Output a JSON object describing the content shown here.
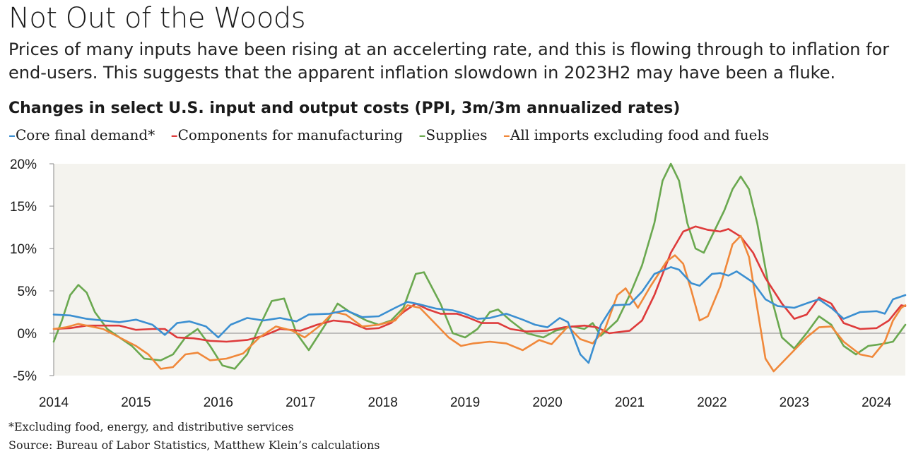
{
  "title": "Not Out of the Woods",
  "subtitle": "Prices of many inputs have been rising at an accelerting rate, and this is flowing through to inflation for end-users. This suggests that the apparent inflation slowdown in 2023H2 may have been a fluke.",
  "footnote": "*Excluding food, energy, and distributive services",
  "source": "Source: Bureau of Labor Statistics, Matthew Klein’s calculations",
  "chart_data": {
    "type": "line",
    "title": "Changes in select U.S. input and output costs (PPI, 3m/3m annualized rates)",
    "legend_position": "top",
    "grid": false,
    "background": "#f4f3ee",
    "xlim": [
      2014.0,
      2024.35
    ],
    "ylim": [
      -5,
      20
    ],
    "x_ticks": [
      2014,
      2015,
      2016,
      2017,
      2018,
      2019,
      2020,
      2021,
      2022,
      2023,
      2024
    ],
    "x_tick_labels": [
      "2014",
      "2015",
      "2016",
      "2017",
      "2018",
      "2019",
      "2020",
      "2021",
      "2022",
      "2023",
      "2024"
    ],
    "y_ticks": [
      -5,
      0,
      5,
      10,
      15,
      20
    ],
    "y_tick_labels": [
      "-5%",
      "0%",
      "5%",
      "10%",
      "15%",
      "20%"
    ],
    "series": [
      {
        "name": "Core final demand*",
        "color": "#3b8fd1",
        "points": [
          [
            2014.0,
            2.2
          ],
          [
            2014.2,
            2.1
          ],
          [
            2014.4,
            1.7
          ],
          [
            2014.6,
            1.5
          ],
          [
            2014.8,
            1.3
          ],
          [
            2015.0,
            1.6
          ],
          [
            2015.2,
            1.0
          ],
          [
            2015.35,
            -0.2
          ],
          [
            2015.5,
            1.2
          ],
          [
            2015.65,
            1.4
          ],
          [
            2015.85,
            0.8
          ],
          [
            2016.0,
            -0.5
          ],
          [
            2016.15,
            1.0
          ],
          [
            2016.35,
            1.8
          ],
          [
            2016.55,
            1.5
          ],
          [
            2016.75,
            1.8
          ],
          [
            2016.95,
            1.4
          ],
          [
            2017.1,
            2.2
          ],
          [
            2017.35,
            2.3
          ],
          [
            2017.55,
            2.7
          ],
          [
            2017.75,
            1.9
          ],
          [
            2017.95,
            2.0
          ],
          [
            2018.15,
            3.0
          ],
          [
            2018.3,
            3.7
          ],
          [
            2018.45,
            3.4
          ],
          [
            2018.65,
            2.9
          ],
          [
            2018.85,
            2.7
          ],
          [
            2019.0,
            2.3
          ],
          [
            2019.15,
            1.7
          ],
          [
            2019.3,
            1.8
          ],
          [
            2019.5,
            2.3
          ],
          [
            2019.7,
            1.6
          ],
          [
            2019.85,
            1.0
          ],
          [
            2020.0,
            0.7
          ],
          [
            2020.15,
            1.8
          ],
          [
            2020.25,
            1.3
          ],
          [
            2020.4,
            -2.5
          ],
          [
            2020.5,
            -3.5
          ],
          [
            2020.65,
            1.0
          ],
          [
            2020.8,
            3.3
          ],
          [
            2021.0,
            3.4
          ],
          [
            2021.15,
            4.9
          ],
          [
            2021.3,
            7.0
          ],
          [
            2021.5,
            7.8
          ],
          [
            2021.6,
            7.5
          ],
          [
            2021.75,
            5.9
          ],
          [
            2021.85,
            5.6
          ],
          [
            2022.0,
            7.0
          ],
          [
            2022.1,
            7.1
          ],
          [
            2022.2,
            6.8
          ],
          [
            2022.3,
            7.3
          ],
          [
            2022.5,
            6.0
          ],
          [
            2022.65,
            4.0
          ],
          [
            2022.8,
            3.2
          ],
          [
            2023.0,
            3.0
          ],
          [
            2023.2,
            3.7
          ],
          [
            2023.3,
            4.0
          ],
          [
            2023.45,
            3.0
          ],
          [
            2023.6,
            1.7
          ],
          [
            2023.8,
            2.5
          ],
          [
            2024.0,
            2.6
          ],
          [
            2024.1,
            2.3
          ],
          [
            2024.2,
            4.0
          ],
          [
            2024.35,
            4.5
          ]
        ]
      },
      {
        "name": "Components for manufacturing",
        "color": "#de3b3b",
        "points": [
          [
            2014.0,
            0.5
          ],
          [
            2014.2,
            0.6
          ],
          [
            2014.4,
            0.9
          ],
          [
            2014.6,
            0.9
          ],
          [
            2014.8,
            0.9
          ],
          [
            2015.0,
            0.4
          ],
          [
            2015.2,
            0.5
          ],
          [
            2015.35,
            0.5
          ],
          [
            2015.5,
            -0.5
          ],
          [
            2015.7,
            -0.6
          ],
          [
            2015.9,
            -0.9
          ],
          [
            2016.1,
            -1.0
          ],
          [
            2016.35,
            -0.8
          ],
          [
            2016.55,
            -0.3
          ],
          [
            2016.75,
            0.5
          ],
          [
            2017.0,
            0.3
          ],
          [
            2017.2,
            1.0
          ],
          [
            2017.4,
            1.5
          ],
          [
            2017.6,
            1.3
          ],
          [
            2017.8,
            0.5
          ],
          [
            2017.95,
            0.6
          ],
          [
            2018.1,
            1.2
          ],
          [
            2018.25,
            2.5
          ],
          [
            2018.4,
            3.5
          ],
          [
            2018.55,
            2.8
          ],
          [
            2018.7,
            2.3
          ],
          [
            2018.9,
            2.3
          ],
          [
            2019.05,
            1.8
          ],
          [
            2019.2,
            1.2
          ],
          [
            2019.4,
            1.2
          ],
          [
            2019.55,
            0.5
          ],
          [
            2019.75,
            0.2
          ],
          [
            2020.0,
            0.3
          ],
          [
            2020.2,
            0.7
          ],
          [
            2020.45,
            0.9
          ],
          [
            2020.6,
            0.7
          ],
          [
            2020.75,
            0.0
          ],
          [
            2021.0,
            0.3
          ],
          [
            2021.15,
            1.5
          ],
          [
            2021.3,
            4.5
          ],
          [
            2021.5,
            9.5
          ],
          [
            2021.65,
            12.0
          ],
          [
            2021.8,
            12.6
          ],
          [
            2021.95,
            12.2
          ],
          [
            2022.1,
            12.0
          ],
          [
            2022.2,
            12.3
          ],
          [
            2022.35,
            11.4
          ],
          [
            2022.5,
            9.5
          ],
          [
            2022.65,
            6.5
          ],
          [
            2022.85,
            3.5
          ],
          [
            2023.0,
            1.7
          ],
          [
            2023.15,
            2.2
          ],
          [
            2023.3,
            4.2
          ],
          [
            2023.45,
            3.5
          ],
          [
            2023.6,
            1.2
          ],
          [
            2023.8,
            0.5
          ],
          [
            2024.0,
            0.6
          ],
          [
            2024.15,
            1.5
          ],
          [
            2024.3,
            3.3
          ],
          [
            2024.35,
            3.2
          ]
        ]
      },
      {
        "name": "Supplies",
        "color": "#6aa84f",
        "points": [
          [
            2014.0,
            -1.0
          ],
          [
            2014.1,
            1.5
          ],
          [
            2014.2,
            4.5
          ],
          [
            2014.3,
            5.7
          ],
          [
            2014.4,
            4.8
          ],
          [
            2014.5,
            2.5
          ],
          [
            2014.65,
            0.5
          ],
          [
            2014.8,
            -0.5
          ],
          [
            2014.95,
            -1.5
          ],
          [
            2015.1,
            -3.0
          ],
          [
            2015.3,
            -3.2
          ],
          [
            2015.45,
            -2.5
          ],
          [
            2015.6,
            -0.5
          ],
          [
            2015.75,
            0.5
          ],
          [
            2015.9,
            -1.5
          ],
          [
            2016.05,
            -3.8
          ],
          [
            2016.2,
            -4.2
          ],
          [
            2016.35,
            -2.5
          ],
          [
            2016.5,
            0.8
          ],
          [
            2016.65,
            3.8
          ],
          [
            2016.8,
            4.1
          ],
          [
            2016.95,
            0.0
          ],
          [
            2017.1,
            -2.0
          ],
          [
            2017.3,
            1.0
          ],
          [
            2017.45,
            3.5
          ],
          [
            2017.6,
            2.5
          ],
          [
            2017.8,
            1.5
          ],
          [
            2017.95,
            1.0
          ],
          [
            2018.1,
            1.5
          ],
          [
            2018.25,
            3.0
          ],
          [
            2018.4,
            7.0
          ],
          [
            2018.5,
            7.2
          ],
          [
            2018.7,
            3.5
          ],
          [
            2018.85,
            0.0
          ],
          [
            2019.0,
            -0.5
          ],
          [
            2019.15,
            0.5
          ],
          [
            2019.3,
            2.5
          ],
          [
            2019.4,
            2.8
          ],
          [
            2019.55,
            1.5
          ],
          [
            2019.75,
            0.0
          ],
          [
            2019.95,
            -0.5
          ],
          [
            2020.1,
            0.3
          ],
          [
            2020.3,
            0.8
          ],
          [
            2020.45,
            0.5
          ],
          [
            2020.55,
            1.2
          ],
          [
            2020.65,
            -0.3
          ],
          [
            2020.85,
            1.5
          ],
          [
            2021.0,
            4.5
          ],
          [
            2021.15,
            8.0
          ],
          [
            2021.3,
            13.0
          ],
          [
            2021.4,
            18.0
          ],
          [
            2021.5,
            20.0
          ],
          [
            2021.6,
            18.0
          ],
          [
            2021.7,
            13.0
          ],
          [
            2021.8,
            10.0
          ],
          [
            2021.9,
            9.5
          ],
          [
            2022.0,
            11.5
          ],
          [
            2022.15,
            14.5
          ],
          [
            2022.25,
            17.0
          ],
          [
            2022.35,
            18.5
          ],
          [
            2022.45,
            17.0
          ],
          [
            2022.55,
            13.0
          ],
          [
            2022.7,
            5.0
          ],
          [
            2022.85,
            -0.5
          ],
          [
            2023.0,
            -1.8
          ],
          [
            2023.15,
            0.0
          ],
          [
            2023.3,
            2.0
          ],
          [
            2023.45,
            1.0
          ],
          [
            2023.6,
            -1.5
          ],
          [
            2023.75,
            -2.5
          ],
          [
            2023.9,
            -1.5
          ],
          [
            2024.05,
            -1.3
          ],
          [
            2024.2,
            -1.0
          ],
          [
            2024.35,
            1.0
          ]
        ]
      },
      {
        "name": "All imports excluding food and fuels",
        "color": "#f0883a",
        "points": [
          [
            2014.0,
            0.5
          ],
          [
            2014.15,
            0.7
          ],
          [
            2014.3,
            1.1
          ],
          [
            2014.45,
            0.8
          ],
          [
            2014.6,
            0.5
          ],
          [
            2014.8,
            -0.5
          ],
          [
            2015.0,
            -1.5
          ],
          [
            2015.15,
            -2.5
          ],
          [
            2015.3,
            -4.2
          ],
          [
            2015.45,
            -4.0
          ],
          [
            2015.6,
            -2.5
          ],
          [
            2015.75,
            -2.3
          ],
          [
            2015.9,
            -3.2
          ],
          [
            2016.1,
            -3.0
          ],
          [
            2016.3,
            -2.4
          ],
          [
            2016.5,
            -0.5
          ],
          [
            2016.7,
            0.8
          ],
          [
            2016.9,
            0.3
          ],
          [
            2017.05,
            -0.5
          ],
          [
            2017.25,
            1.0
          ],
          [
            2017.4,
            2.5
          ],
          [
            2017.55,
            2.2
          ],
          [
            2017.75,
            0.8
          ],
          [
            2017.95,
            1.0
          ],
          [
            2018.15,
            1.5
          ],
          [
            2018.3,
            3.3
          ],
          [
            2018.45,
            3.0
          ],
          [
            2018.6,
            1.5
          ],
          [
            2018.8,
            -0.5
          ],
          [
            2018.95,
            -1.5
          ],
          [
            2019.1,
            -1.2
          ],
          [
            2019.3,
            -1.0
          ],
          [
            2019.5,
            -1.2
          ],
          [
            2019.7,
            -2.0
          ],
          [
            2019.9,
            -0.8
          ],
          [
            2020.05,
            -1.3
          ],
          [
            2020.25,
            0.8
          ],
          [
            2020.4,
            -0.7
          ],
          [
            2020.55,
            -1.2
          ],
          [
            2020.7,
            0.5
          ],
          [
            2020.85,
            4.5
          ],
          [
            2020.95,
            5.3
          ],
          [
            2021.1,
            3.0
          ],
          [
            2021.25,
            5.5
          ],
          [
            2021.45,
            8.5
          ],
          [
            2021.55,
            9.2
          ],
          [
            2021.65,
            8.2
          ],
          [
            2021.75,
            5.0
          ],
          [
            2021.85,
            1.5
          ],
          [
            2021.95,
            2.0
          ],
          [
            2022.1,
            5.5
          ],
          [
            2022.25,
            10.5
          ],
          [
            2022.35,
            11.5
          ],
          [
            2022.45,
            9.0
          ],
          [
            2022.55,
            3.0
          ],
          [
            2022.65,
            -3.0
          ],
          [
            2022.75,
            -4.5
          ],
          [
            2022.85,
            -3.5
          ],
          [
            2023.0,
            -2.0
          ],
          [
            2023.15,
            -0.5
          ],
          [
            2023.3,
            0.7
          ],
          [
            2023.45,
            0.8
          ],
          [
            2023.6,
            -1.0
          ],
          [
            2023.8,
            -2.5
          ],
          [
            2023.95,
            -2.8
          ],
          [
            2024.1,
            -1.0
          ],
          [
            2024.2,
            1.5
          ],
          [
            2024.3,
            3.0
          ],
          [
            2024.35,
            3.3
          ]
        ]
      }
    ]
  }
}
